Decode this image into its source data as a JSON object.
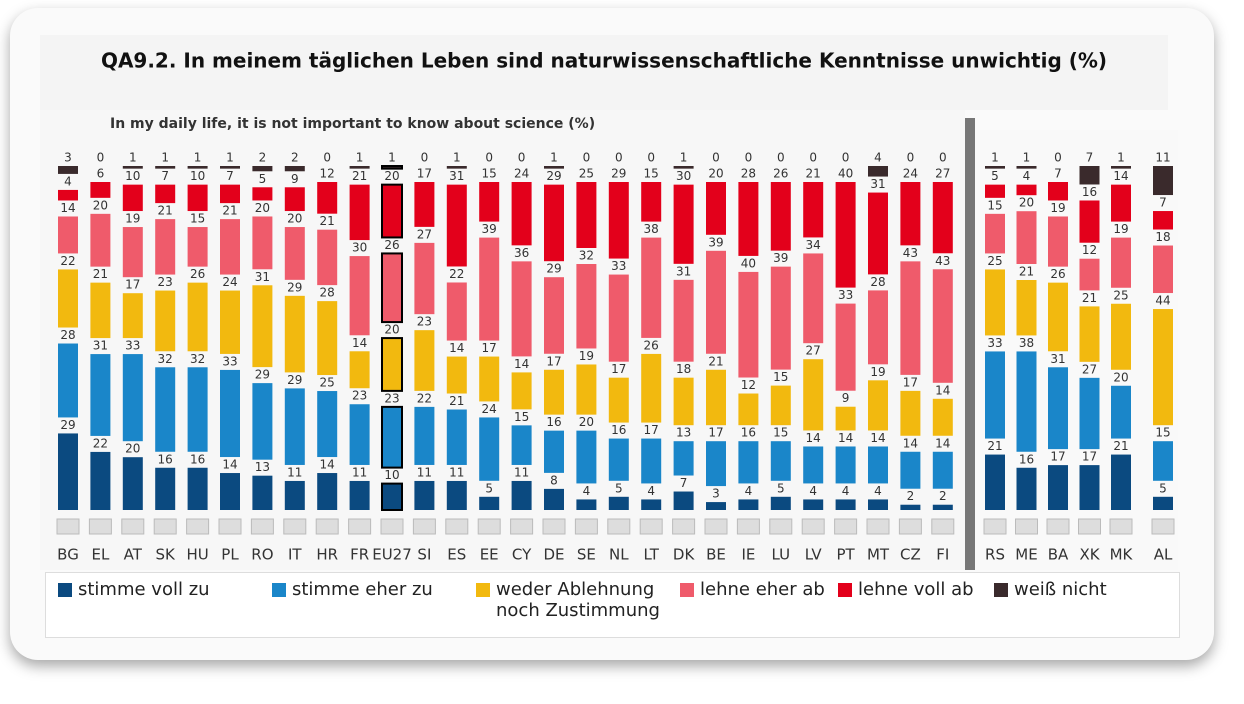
{
  "chart_data": {
    "type": "bar",
    "stacked": true,
    "title": "QA9.2. In meinem täglichen Leben sind naturwissenschaftliche Kenntnisse unwichtig (%)",
    "subtitle": "In my daily life, it is not important to know about science (%)",
    "categories": [
      "BG",
      "EL",
      "AT",
      "SK",
      "HU",
      "PL",
      "RO",
      "IT",
      "HR",
      "FR",
      "EU27",
      "SI",
      "ES",
      "EE",
      "CY",
      "DE",
      "SE",
      "NL",
      "LT",
      "DK",
      "BE",
      "IE",
      "LU",
      "LV",
      "PT",
      "MT",
      "CZ",
      "FI",
      "RS",
      "ME",
      "BA",
      "XK",
      "MK",
      "AL"
    ],
    "series": [
      {
        "name": "stimme voll zu",
        "color": "#0b4a80",
        "values": [
          29,
          22,
          20,
          16,
          16,
          14,
          13,
          11,
          14,
          11,
          10,
          11,
          11,
          5,
          11,
          8,
          4,
          5,
          4,
          7,
          3,
          4,
          5,
          4,
          4,
          4,
          2,
          2,
          21,
          16,
          17,
          17,
          21,
          5
        ]
      },
      {
        "name": "stimme eher zu",
        "color": "#1a86c9",
        "values": [
          28,
          31,
          33,
          32,
          32,
          33,
          29,
          29,
          25,
          23,
          23,
          22,
          21,
          24,
          15,
          16,
          20,
          16,
          17,
          13,
          17,
          16,
          15,
          14,
          14,
          14,
          14,
          14,
          33,
          38,
          31,
          27,
          20,
          15
        ]
      },
      {
        "name": "weder Ablehnung noch Zustimmung",
        "color": "#f2b90f",
        "values": [
          22,
          21,
          17,
          23,
          26,
          24,
          31,
          29,
          28,
          14,
          20,
          23,
          14,
          17,
          14,
          17,
          19,
          17,
          26,
          18,
          21,
          12,
          15,
          27,
          9,
          19,
          17,
          14,
          25,
          21,
          26,
          21,
          25,
          44
        ]
      },
      {
        "name": "lehne eher ab",
        "color": "#ef5b6b",
        "values": [
          14,
          20,
          19,
          21,
          15,
          21,
          20,
          20,
          21,
          30,
          26,
          27,
          22,
          39,
          36,
          29,
          32,
          33,
          38,
          31,
          39,
          40,
          39,
          34,
          33,
          28,
          43,
          43,
          15,
          20,
          19,
          12,
          19,
          18
        ]
      },
      {
        "name": "lehne voll ab",
        "color": "#e3001b",
        "values": [
          4,
          6,
          10,
          7,
          10,
          7,
          5,
          9,
          12,
          21,
          20,
          17,
          31,
          15,
          24,
          29,
          25,
          29,
          15,
          30,
          20,
          28,
          26,
          21,
          40,
          31,
          24,
          27,
          5,
          4,
          7,
          16,
          14,
          7
        ]
      },
      {
        "name": "weiß nicht",
        "color": "#3a2a2c",
        "values": [
          3,
          0,
          1,
          1,
          1,
          1,
          2,
          2,
          0,
          1,
          1,
          0,
          1,
          0,
          0,
          1,
          0,
          0,
          0,
          1,
          0,
          0,
          0,
          0,
          0,
          4,
          0,
          0,
          1,
          1,
          0,
          7,
          1,
          11
        ]
      }
    ]
  }
}
